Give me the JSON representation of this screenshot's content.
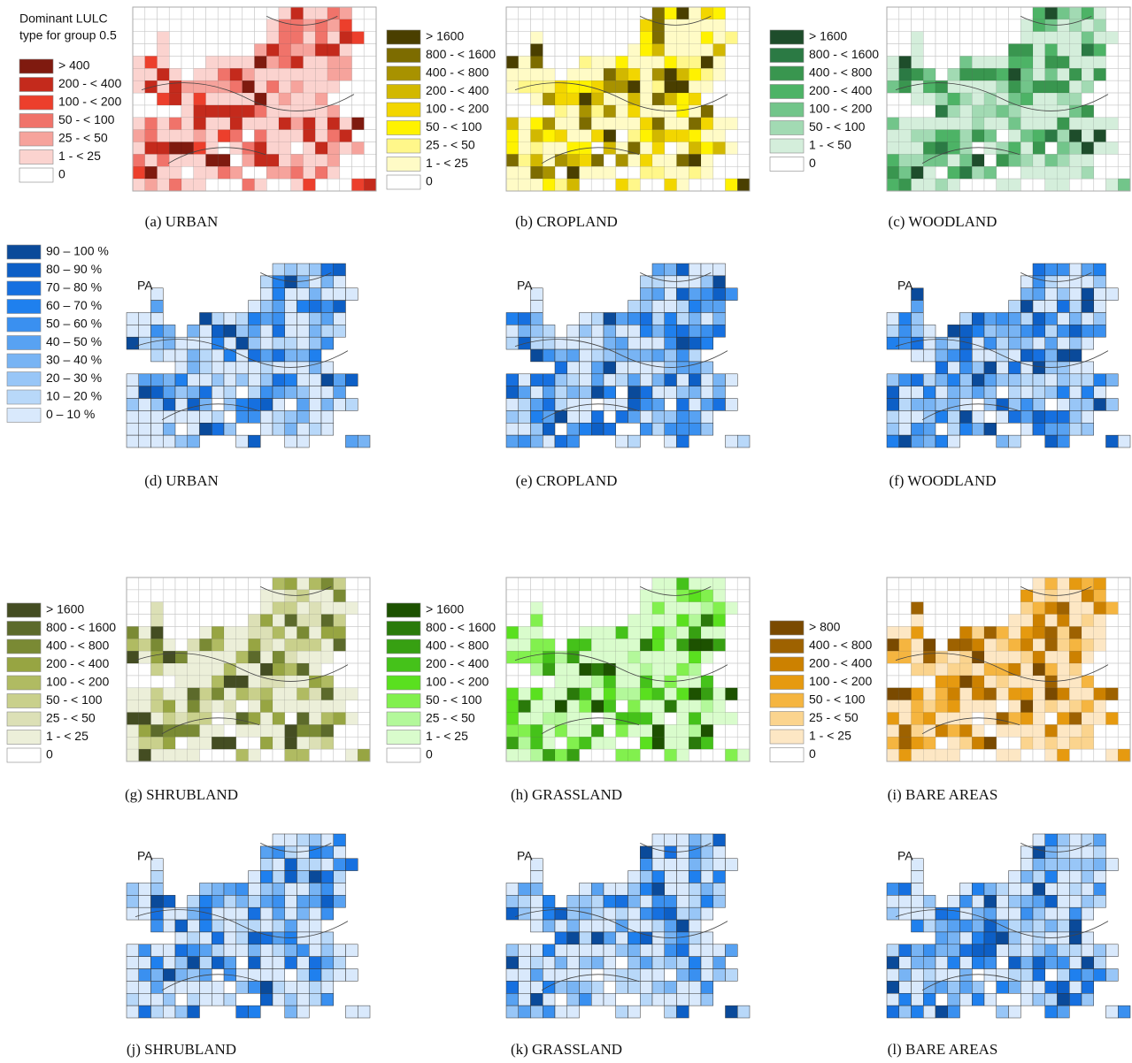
{
  "panels": [
    {
      "caption": "(a) URBAN",
      "legend_title": [
        "Dominant LULC",
        "type for group 0.5"
      ],
      "legend": [
        {
          "label": "> 400",
          "color": "#7f1a0f"
        },
        {
          "label": "200 - < 400",
          "color": "#c42a1c"
        },
        {
          "label": "100 - < 200",
          "color": "#ec3f2c"
        },
        {
          "label": "50 - < 100",
          "color": "#f0736a"
        },
        {
          "label": "25 - < 50",
          "color": "#f6a39c"
        },
        {
          "label": "1 - < 25",
          "color": "#fbd3cf"
        },
        {
          "label": "0",
          "color": "#ffffff"
        }
      ]
    },
    {
      "caption": "(b) CROPLAND",
      "legend": [
        {
          "label": "> 1600",
          "color": "#4a3f00"
        },
        {
          "label": "800 - < 1600",
          "color": "#7d6c00"
        },
        {
          "label": "400 - < 800",
          "color": "#a89200"
        },
        {
          "label": "200 - < 400",
          "color": "#d2b800"
        },
        {
          "label": "100 - < 200",
          "color": "#f2d600"
        },
        {
          "label": "50 - < 100",
          "color": "#fff200"
        },
        {
          "label": "25 - < 50",
          "color": "#fff78a"
        },
        {
          "label": "1 - < 25",
          "color": "#fffbc6"
        },
        {
          "label": "0",
          "color": "#ffffff"
        }
      ]
    },
    {
      "caption": "(c) WOODLAND",
      "legend": [
        {
          "label": "> 1600",
          "color": "#1e4d2b"
        },
        {
          "label": "800 - < 1600",
          "color": "#2b7a44"
        },
        {
          "label": "400 - < 800",
          "color": "#39964f"
        },
        {
          "label": "200 - < 400",
          "color": "#4db366"
        },
        {
          "label": "100 - < 200",
          "color": "#72c58a"
        },
        {
          "label": "50 - < 100",
          "color": "#a2dab3"
        },
        {
          "label": "1 - < 50",
          "color": "#d4eedb"
        },
        {
          "label": "0",
          "color": "#ffffff"
        }
      ]
    },
    {
      "caption": "(d) URBAN",
      "label": "PA",
      "legend": [
        {
          "label": "90 – 100 %",
          "color": "#0a4a9a"
        },
        {
          "label": "80 – 90 %",
          "color": "#0d5fc6"
        },
        {
          "label": "70 – 80 %",
          "color": "#1670e0"
        },
        {
          "label": "60 – 70 %",
          "color": "#1f80ee"
        },
        {
          "label": "50 – 60 %",
          "color": "#3a90f0"
        },
        {
          "label": "40 – 50 %",
          "color": "#58a2f2"
        },
        {
          "label": "30 – 40 %",
          "color": "#78b4f4"
        },
        {
          "label": "20 – 30 %",
          "color": "#98c6f7"
        },
        {
          "label": "10 – 20 %",
          "color": "#b8d8f9"
        },
        {
          "label": "0 – 10 %",
          "color": "#d9e9fc"
        }
      ]
    },
    {
      "caption": "(e) CROPLAND",
      "label": "PA"
    },
    {
      "caption": "(f) WOODLAND",
      "label": "PA"
    },
    {
      "caption": "(g) SHRUBLAND",
      "legend": [
        {
          "label": "> 1600",
          "color": "#444d22"
        },
        {
          "label": "800 - < 1600",
          "color": "#5c6a2b"
        },
        {
          "label": "400 - < 800",
          "color": "#7a8a34"
        },
        {
          "label": "200 - < 400",
          "color": "#97a542"
        },
        {
          "label": "100 - < 200",
          "color": "#b0bb62"
        },
        {
          "label": "50 - < 100",
          "color": "#c9d08c"
        },
        {
          "label": "25 - < 50",
          "color": "#dce0b6"
        },
        {
          "label": "1 - < 25",
          "color": "#ecefd9"
        },
        {
          "label": "0",
          "color": "#ffffff"
        }
      ]
    },
    {
      "caption": "(h) GRASSLAND",
      "legend": [
        {
          "label": "> 1600",
          "color": "#1d5200"
        },
        {
          "label": "800 - < 1600",
          "color": "#2a7a0a"
        },
        {
          "label": "400 - < 800",
          "color": "#37a012"
        },
        {
          "label": "200 - < 400",
          "color": "#45c21a"
        },
        {
          "label": "100 - < 200",
          "color": "#5ae01f"
        },
        {
          "label": "50 - < 100",
          "color": "#82f04e"
        },
        {
          "label": "25 - < 50",
          "color": "#b3f89a"
        },
        {
          "label": "1 - < 25",
          "color": "#d9fccc"
        },
        {
          "label": "0",
          "color": "#ffffff"
        }
      ]
    },
    {
      "caption": "(i) BARE AREAS",
      "legend": [
        {
          "label": "> 800",
          "color": "#7a4a00"
        },
        {
          "label": "400 - < 800",
          "color": "#9e6200"
        },
        {
          "label": "200 - < 400",
          "color": "#cc8100"
        },
        {
          "label": "100 - < 200",
          "color": "#e69a10"
        },
        {
          "label": "50 - < 100",
          "color": "#f5b540"
        },
        {
          "label": "25 - < 50",
          "color": "#fbd48e"
        },
        {
          "label": "1 - < 25",
          "color": "#fde7c4"
        },
        {
          "label": "0",
          "color": "#ffffff"
        }
      ]
    },
    {
      "caption": "(j) SHRUBLAND",
      "label": "PA"
    },
    {
      "caption": "(k) GRASSLAND",
      "label": "PA"
    },
    {
      "caption": "(l) BARE AREAS",
      "label": "PA"
    }
  ]
}
